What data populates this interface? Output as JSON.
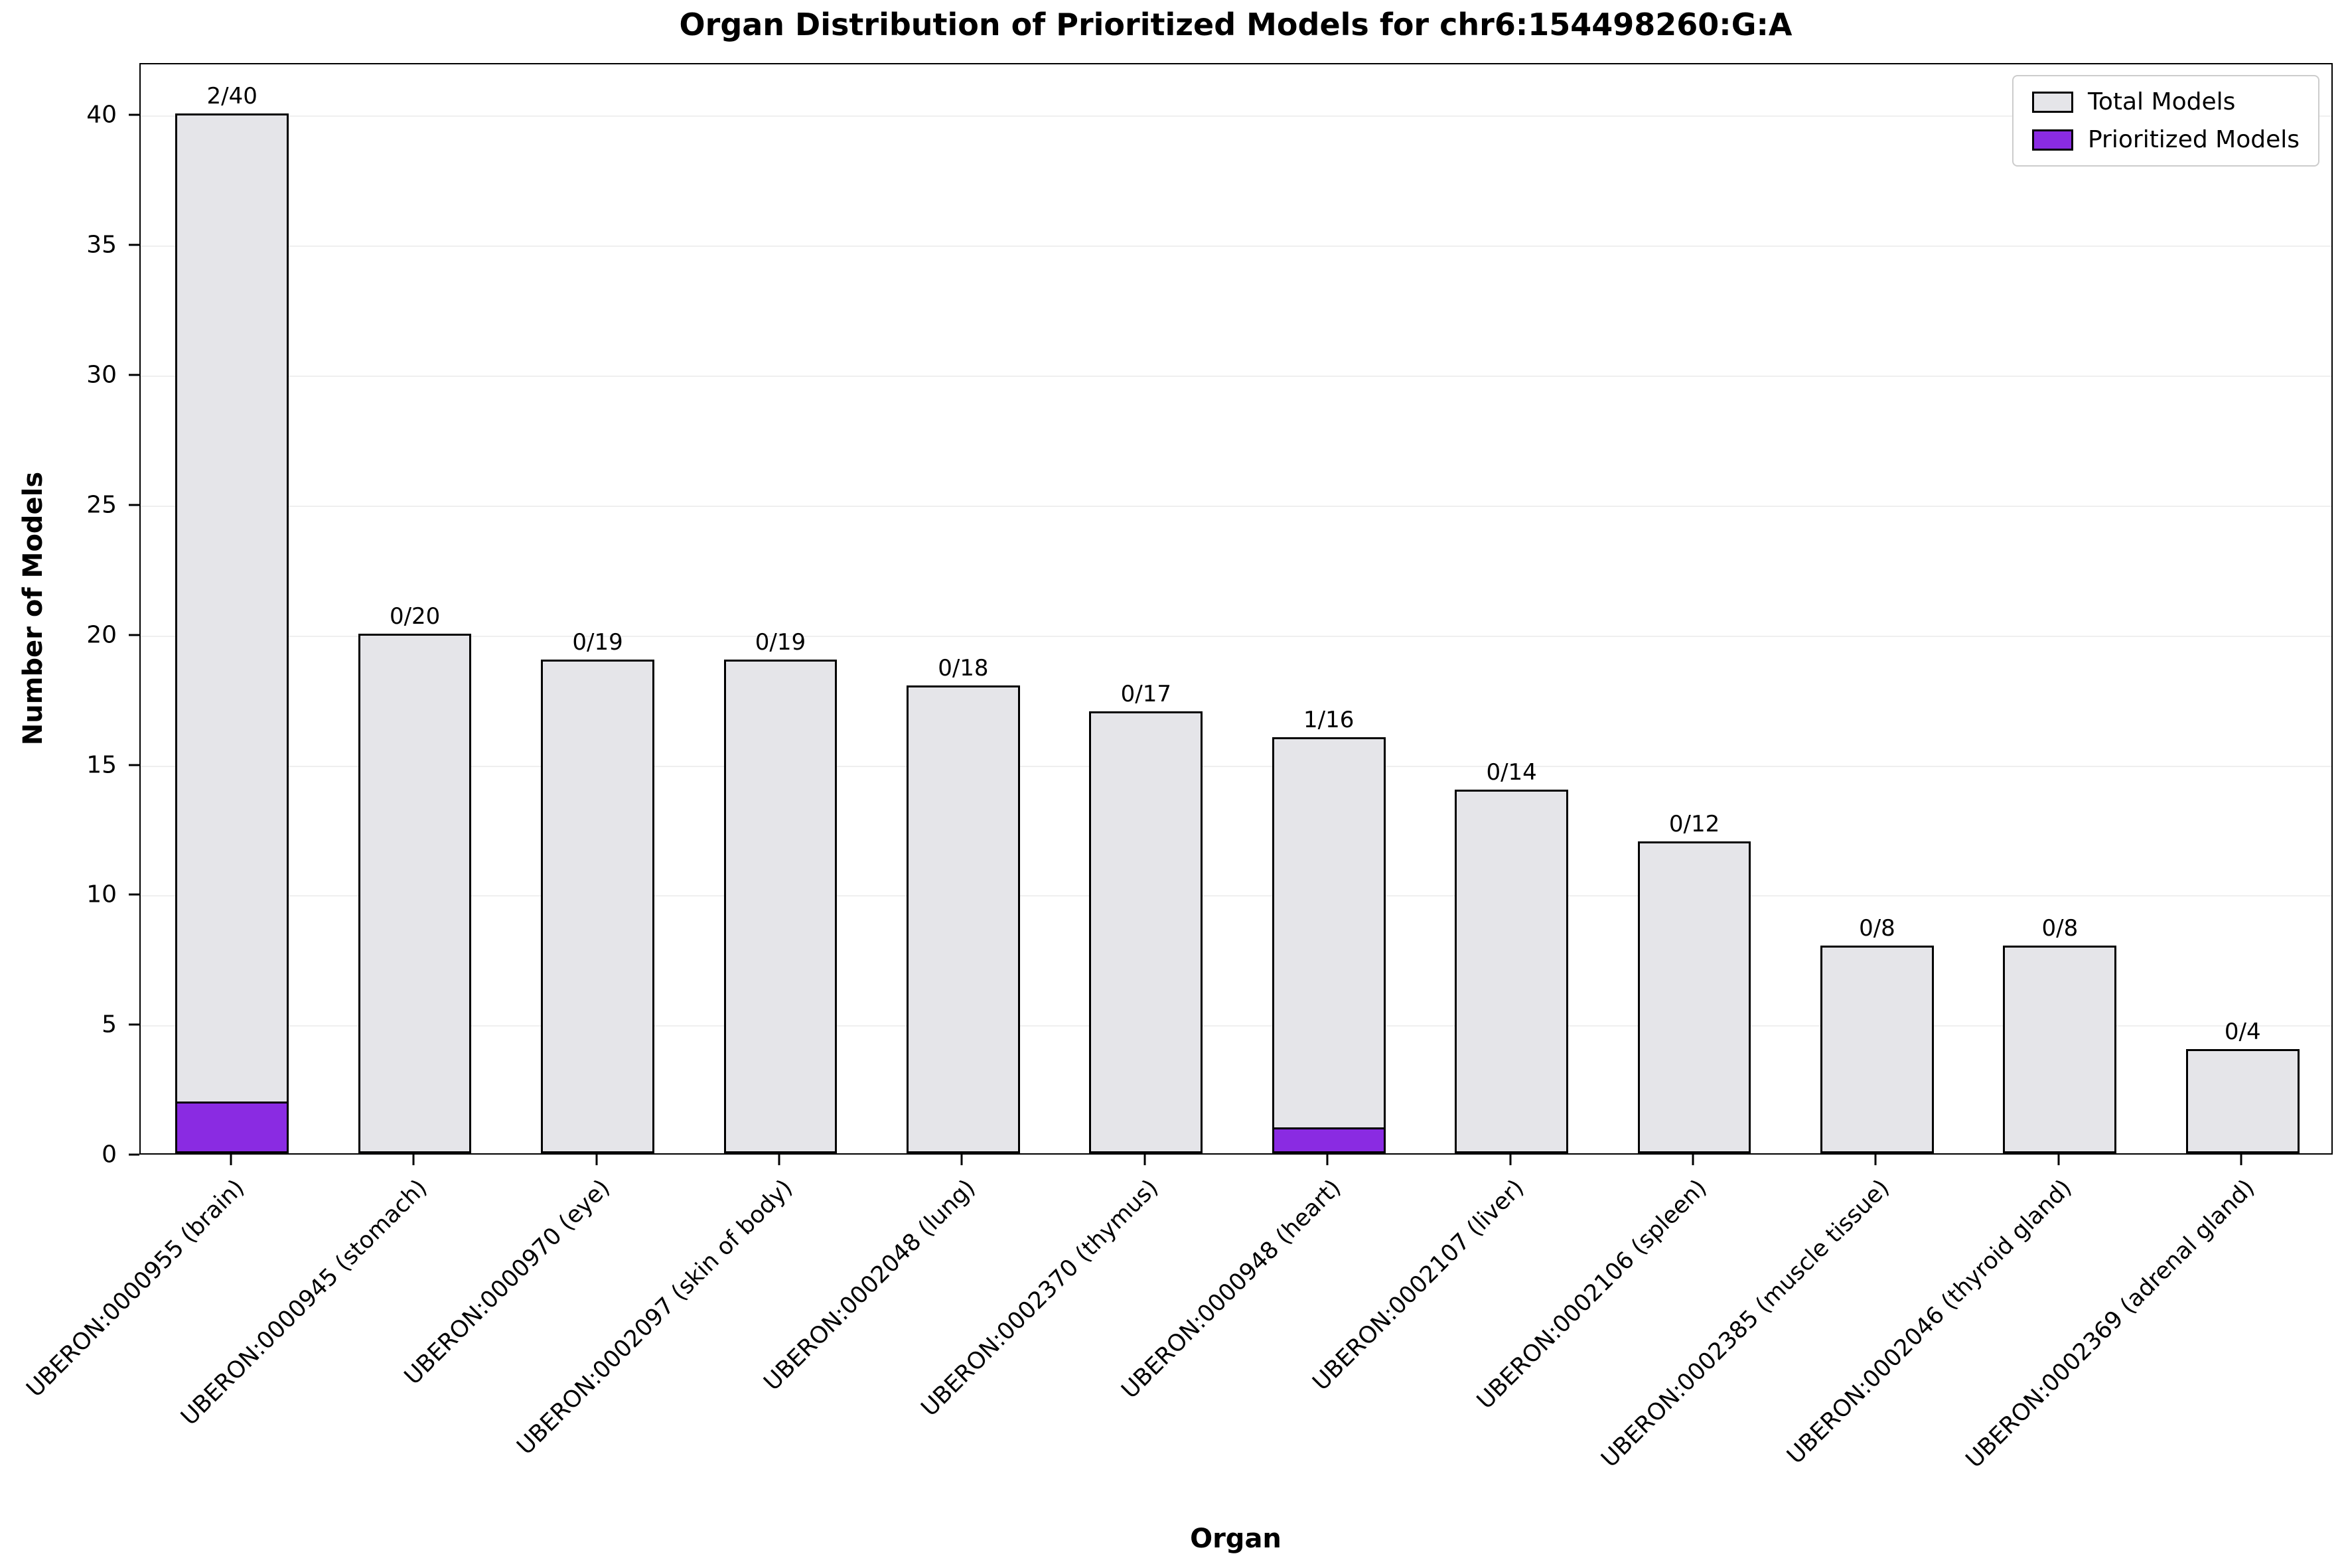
{
  "chart_data": {
    "type": "bar",
    "title": "Organ Distribution of Prioritized Models for chr6:154498260:G:A",
    "xlabel": "Organ",
    "ylabel": "Number of Models",
    "ylim": [
      0,
      42
    ],
    "yticks": [
      0,
      5,
      10,
      15,
      20,
      25,
      30,
      35,
      40
    ],
    "grid": false,
    "legend_position": "top-right",
    "bar_edge_color": "#000000",
    "categories": [
      "UBERON:0000955 (brain)",
      "UBERON:0000945 (stomach)",
      "UBERON:0000970 (eye)",
      "UBERON:0002097 (skin of body)",
      "UBERON:0002048 (lung)",
      "UBERON:0002370 (thymus)",
      "UBERON:0000948 (heart)",
      "UBERON:0002107 (liver)",
      "UBERON:0002106 (spleen)",
      "UBERON:0002385 (muscle tissue)",
      "UBERON:0002046 (thyroid gland)",
      "UBERON:0002369 (adrenal gland)"
    ],
    "series": [
      {
        "name": "Total Models",
        "color": "#e5e5e9",
        "values": [
          40,
          20,
          19,
          19,
          18,
          17,
          16,
          14,
          12,
          8,
          8,
          4
        ]
      },
      {
        "name": "Prioritized Models",
        "color": "#8a2be2",
        "values": [
          2,
          0,
          0,
          0,
          0,
          0,
          1,
          0,
          0,
          0,
          0,
          0
        ]
      }
    ],
    "bar_labels": [
      "2/40",
      "0/20",
      "0/19",
      "0/19",
      "0/18",
      "0/17",
      "1/16",
      "0/14",
      "0/12",
      "0/8",
      "0/8",
      "0/4"
    ]
  }
}
